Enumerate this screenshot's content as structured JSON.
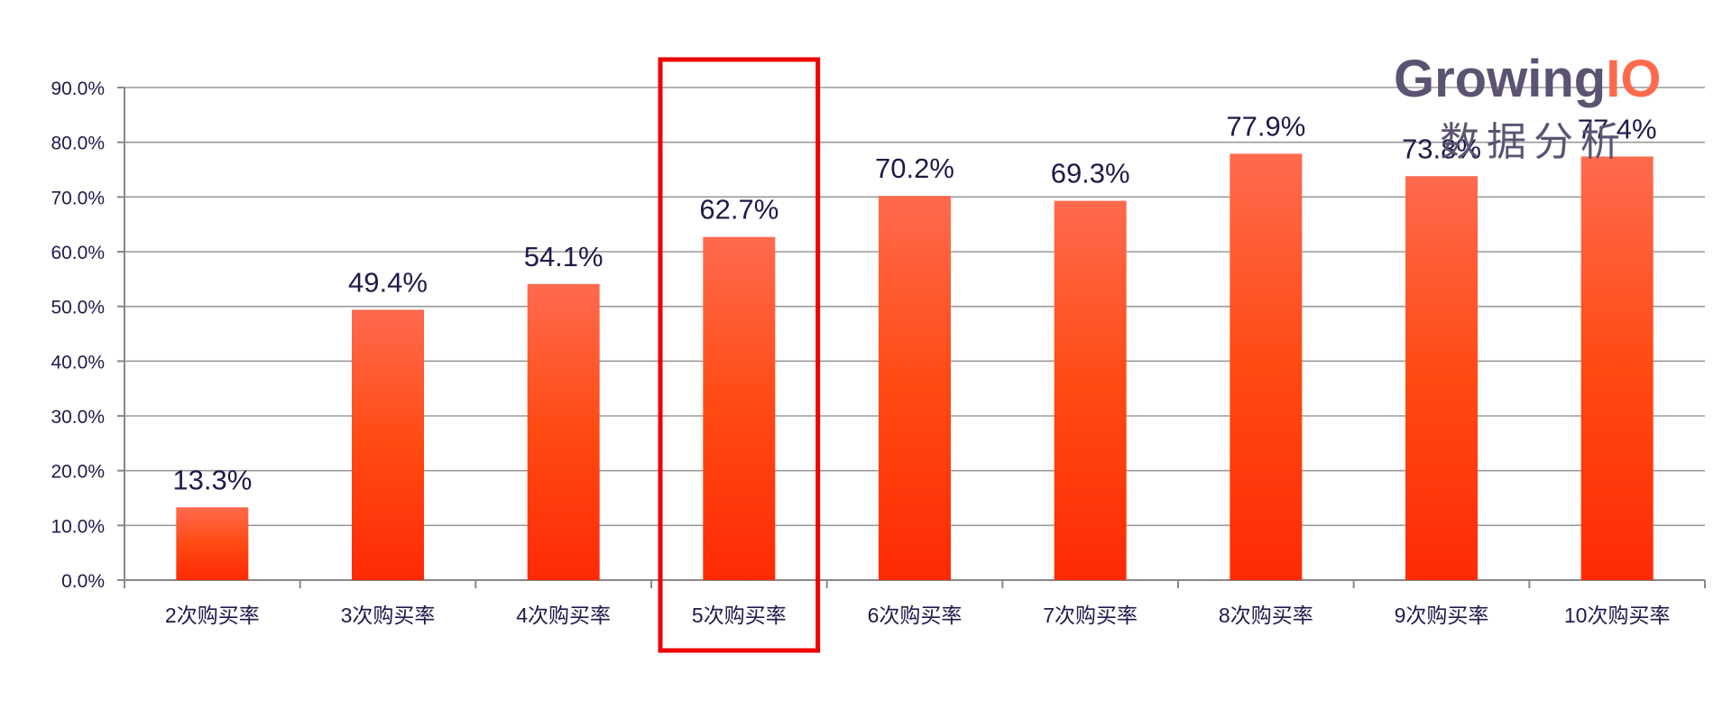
{
  "chart_data": {
    "type": "bar",
    "categories": [
      "2次购买率",
      "3次购买率",
      "4次购买率",
      "5次购买率",
      "6次购买率",
      "7次购买率",
      "8次购买率",
      "9次购买率",
      "10次购买率"
    ],
    "values": [
      13.3,
      49.4,
      54.1,
      62.7,
      70.2,
      69.3,
      77.9,
      73.8,
      77.4
    ],
    "data_labels": [
      "13.3%",
      "49.4%",
      "54.1%",
      "62.7%",
      "70.2%",
      "69.3%",
      "77.9%",
      "73.8%",
      "77.4%"
    ],
    "y_ticks": [
      "0.0%",
      "10.0%",
      "20.0%",
      "30.0%",
      "40.0%",
      "50.0%",
      "60.0%",
      "70.0%",
      "80.0%",
      "90.0%"
    ],
    "ylim": [
      0,
      90
    ],
    "grid": true,
    "highlighted_category": "5次购买率",
    "colors": {
      "bar_top": "#ff6a4e",
      "bar_mid": "#ff4a12",
      "bar_bottom": "#ff2a05",
      "highlight_box": "#ee0000",
      "axis": "#888888"
    }
  },
  "watermark": {
    "brand": "Growing",
    "brand_suffix": "IO",
    "subtitle": "数据分析",
    "brand_color": "#5c5373",
    "suffix_color": "#ff6a4e"
  }
}
